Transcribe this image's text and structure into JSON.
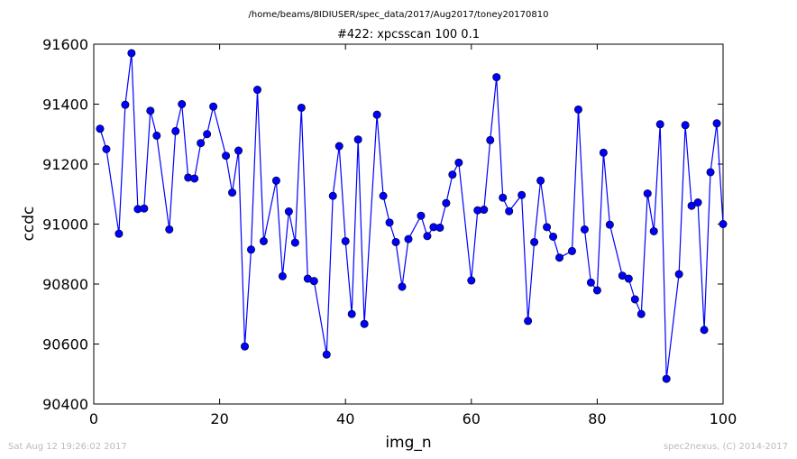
{
  "chart_data": {
    "type": "line",
    "subtitle": "/home/beams/8IDIUSER/spec_data/2017/Aug2017/toney20170810",
    "title": "#422: xpcsscan 100 0.1",
    "xlabel": "img_n",
    "ylabel": "ccdc",
    "xlim": [
      0,
      100
    ],
    "ylim": [
      90400,
      91600
    ],
    "xticks": [
      0,
      20,
      40,
      60,
      80,
      100
    ],
    "yticks": [
      90400,
      90600,
      90800,
      91000,
      91200,
      91400,
      91600
    ],
    "grid": false,
    "legend": "none",
    "series_color": "#0000ff",
    "marker": "circle",
    "x": [
      1,
      2,
      4,
      5,
      6,
      7,
      8,
      9,
      10,
      12,
      13,
      14,
      15,
      16,
      17,
      18,
      19,
      21,
      22,
      23,
      24,
      25,
      26,
      27,
      29,
      30,
      31,
      32,
      33,
      34,
      35,
      37,
      38,
      39,
      40,
      41,
      42,
      43,
      45,
      46,
      47,
      48,
      49,
      50,
      52,
      53,
      54,
      55,
      56,
      57,
      58,
      60,
      61,
      62,
      63,
      64,
      65,
      66,
      68,
      69,
      70,
      71,
      72,
      73,
      74,
      76,
      77,
      78,
      79,
      80,
      81,
      82,
      84,
      85,
      86,
      87,
      88,
      89,
      90,
      91,
      93,
      94,
      95,
      96,
      97,
      98,
      99,
      100
    ],
    "y": [
      91318,
      91250,
      90968,
      91398,
      91570,
      91050,
      91052,
      91378,
      91295,
      90982,
      91310,
      91400,
      91155,
      91152,
      91270,
      91300,
      91392,
      91228,
      91105,
      91245,
      90592,
      90915,
      91448,
      90943,
      91145,
      90826,
      91042,
      90938,
      91388,
      90818,
      90810,
      90565,
      91094,
      91260,
      90943,
      90700,
      91282,
      90667,
      91365,
      91094,
      91005,
      90940,
      90791,
      90950,
      91028,
      90960,
      90990,
      90988,
      91070,
      91165,
      91205,
      90812,
      91046,
      91048,
      91280,
      91490,
      91088,
      91043,
      91097,
      90677,
      90940,
      91145,
      90990,
      90958,
      90888,
      90910,
      91382,
      90982,
      90805,
      90779,
      91238,
      90998,
      90828,
      90818,
      90749,
      90700,
      91102,
      90976,
      91333,
      90484,
      90833,
      91330,
      91061,
      91072,
      90647,
      91173,
      91336,
      91000
    ]
  },
  "footer": {
    "left": "Sat Aug 12 19:26:02 2017",
    "right": "spec2nexus, (C) 2014-2017"
  }
}
